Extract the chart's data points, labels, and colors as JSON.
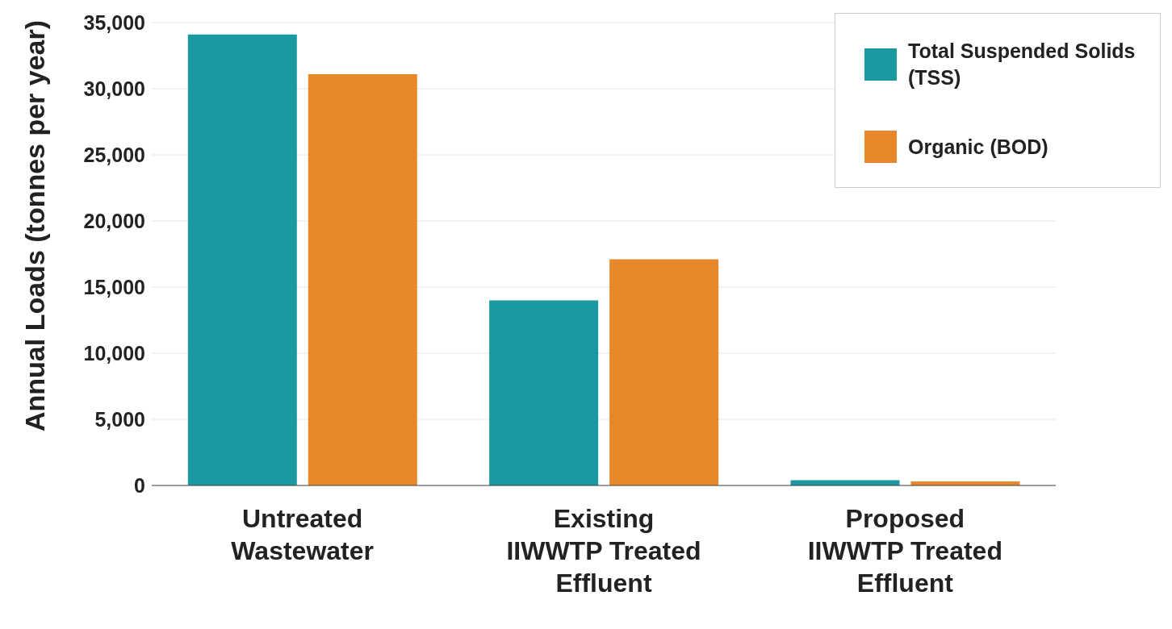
{
  "chart_data": {
    "type": "bar",
    "ylabel": "Annual Loads (tonnes per year)",
    "categories": [
      "Untreated Wastewater",
      "Existing IIWWTP Treated Effluent",
      "Proposed IIWWTP Treated Effluent"
    ],
    "series": [
      {
        "name": "Total Suspended Solids (TSS)",
        "color": "#1a9aa0",
        "values": [
          34100,
          14000,
          400
        ]
      },
      {
        "name": "Organic (BOD)",
        "color": "#e8882a",
        "values": [
          31100,
          17100,
          300
        ]
      }
    ],
    "ylim": [
      0,
      35000
    ],
    "yticks": [
      {
        "value": 0,
        "label": "0"
      },
      {
        "value": 5000,
        "label": "5,000"
      },
      {
        "value": 10000,
        "label": "10,000"
      },
      {
        "value": 15000,
        "label": "15,000"
      },
      {
        "value": 20000,
        "label": "20,000"
      },
      {
        "value": 25000,
        "label": "25,000"
      },
      {
        "value": 30000,
        "label": "30,000"
      },
      {
        "value": 35000,
        "label": "35,000"
      }
    ],
    "grid": "y",
    "legend": "top right"
  }
}
